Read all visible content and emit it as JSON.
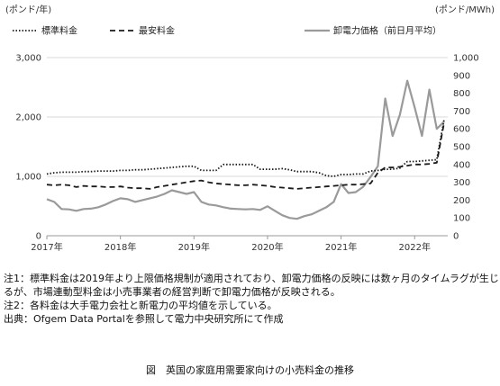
{
  "chart_data": {
    "type": "line",
    "left_axis_unit": "(ポンド/年)",
    "right_axis_unit": "(ポンド/MWh)",
    "left_ylim": [
      0,
      3000
    ],
    "left_ticks": [
      "3,000",
      "2,000",
      "1,000",
      "0"
    ],
    "right_ylim": [
      0,
      1000
    ],
    "right_ticks": [
      "1,000",
      "900",
      "800",
      "700",
      "600",
      "500",
      "400",
      "300",
      "200",
      "100",
      "0"
    ],
    "x_ticks": [
      "2017年",
      "2018年",
      "2019年",
      "2020年",
      "2021年",
      "2022年"
    ],
    "xlim": [
      2017.0,
      2022.45
    ],
    "series": [
      {
        "name": "標準料金",
        "axis": "left",
        "style": "dotted",
        "x": [
          2017.0,
          2017.1,
          2017.2,
          2017.3,
          2017.4,
          2017.5,
          2017.6,
          2017.7,
          2017.8,
          2017.9,
          2018.0,
          2018.1,
          2018.2,
          2018.3,
          2018.4,
          2018.5,
          2018.6,
          2018.7,
          2018.8,
          2018.9,
          2019.0,
          2019.1,
          2019.2,
          2019.3,
          2019.4,
          2019.5,
          2019.6,
          2019.7,
          2019.8,
          2019.9,
          2020.0,
          2020.1,
          2020.2,
          2020.3,
          2020.4,
          2020.5,
          2020.6,
          2020.7,
          2020.8,
          2020.9,
          2021.0,
          2021.1,
          2021.2,
          2021.3,
          2021.4,
          2021.5,
          2021.6,
          2021.7,
          2021.8,
          2021.9,
          2022.0,
          2022.1,
          2022.2,
          2022.3,
          2022.4
        ],
        "values": [
          1040,
          1060,
          1070,
          1070,
          1070,
          1080,
          1080,
          1090,
          1090,
          1090,
          1100,
          1100,
          1110,
          1110,
          1120,
          1130,
          1140,
          1150,
          1160,
          1170,
          1170,
          1100,
          1100,
          1100,
          1200,
          1200,
          1200,
          1200,
          1200,
          1120,
          1120,
          1120,
          1130,
          1110,
          1080,
          1080,
          1080,
          1060,
          1010,
          1000,
          1030,
          1030,
          1040,
          1040,
          1090,
          1100,
          1120,
          1120,
          1140,
          1250,
          1250,
          1260,
          1270,
          1280,
          1950
        ]
      },
      {
        "name": "最安料金",
        "axis": "left",
        "style": "dashed",
        "x": [
          2017.0,
          2017.1,
          2017.2,
          2017.3,
          2017.4,
          2017.5,
          2017.6,
          2017.7,
          2017.8,
          2017.9,
          2018.0,
          2018.1,
          2018.2,
          2018.3,
          2018.4,
          2018.5,
          2018.6,
          2018.7,
          2018.8,
          2018.9,
          2019.0,
          2019.1,
          2019.2,
          2019.3,
          2019.4,
          2019.5,
          2019.6,
          2019.7,
          2019.8,
          2019.9,
          2020.0,
          2020.1,
          2020.2,
          2020.3,
          2020.4,
          2020.5,
          2020.6,
          2020.7,
          2020.8,
          2020.9,
          2021.0,
          2021.1,
          2021.2,
          2021.3,
          2021.4,
          2021.5,
          2021.6,
          2021.7,
          2021.8,
          2021.9,
          2022.0,
          2022.1,
          2022.2,
          2022.3,
          2022.4
        ],
        "values": [
          860,
          850,
          860,
          850,
          820,
          840,
          830,
          830,
          820,
          820,
          830,
          810,
          800,
          800,
          790,
          820,
          840,
          860,
          880,
          900,
          920,
          930,
          900,
          880,
          870,
          860,
          850,
          850,
          860,
          850,
          840,
          820,
          810,
          800,
          790,
          800,
          810,
          820,
          830,
          840,
          850,
          860,
          860,
          870,
          880,
          1060,
          1150,
          1150,
          1160,
          1180,
          1200,
          1200,
          1210,
          1230,
          1900
        ]
      },
      {
        "name": "卸電力価格（前日月平均）",
        "axis": "right",
        "style": "solid",
        "x": [
          2017.0,
          2017.1,
          2017.2,
          2017.3,
          2017.4,
          2017.5,
          2017.6,
          2017.7,
          2017.8,
          2017.9,
          2018.0,
          2018.1,
          2018.2,
          2018.3,
          2018.4,
          2018.5,
          2018.6,
          2018.7,
          2018.8,
          2018.9,
          2019.0,
          2019.1,
          2019.2,
          2019.3,
          2019.4,
          2019.5,
          2019.6,
          2019.7,
          2019.8,
          2019.9,
          2020.0,
          2020.1,
          2020.2,
          2020.3,
          2020.4,
          2020.5,
          2020.6,
          2020.7,
          2020.8,
          2020.9,
          2021.0,
          2021.1,
          2021.2,
          2021.3,
          2021.4,
          2021.5,
          2021.6,
          2021.7,
          2021.8,
          2021.9,
          2022.0,
          2022.1,
          2022.2,
          2022.3,
          2022.4
        ],
        "values": [
          205,
          190,
          150,
          148,
          140,
          150,
          152,
          160,
          175,
          195,
          210,
          205,
          190,
          200,
          210,
          220,
          235,
          255,
          245,
          235,
          245,
          190,
          175,
          170,
          160,
          152,
          150,
          148,
          150,
          145,
          165,
          140,
          115,
          100,
          95,
          110,
          120,
          140,
          160,
          190,
          290,
          240,
          245,
          275,
          330,
          390,
          770,
          560,
          680,
          870,
          720,
          560,
          820,
          600,
          640
        ]
      }
    ]
  },
  "notes": [
    "注1：標準料金は2019年より上限価格規制が適用されており、卸電力価格の反映には数ヶ月のタイムラグが生じるが、市場連動型料金は小売事業者の経営判断で卸電力価格が反映される。",
    "注2：各料金は大手電力会社と新電力の平均値を示している。",
    "出典：Ofgem Data Portalを参照して電力中央研究所にて作成"
  ],
  "caption": "図　英国の家庭用需要家向けの小売料金の推移"
}
